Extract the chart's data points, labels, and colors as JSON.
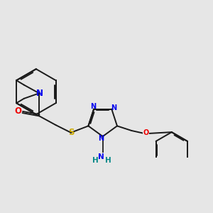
{
  "background_color": "#e6e6e6",
  "figsize": [
    3.0,
    3.0
  ],
  "dpi": 100,
  "bond_color": "#1a1a1a",
  "bond_width": 1.4,
  "atom_colors": {
    "N": "#0000ee",
    "O": "#ee0000",
    "S": "#ccaa00",
    "NH": "#008888"
  },
  "font_size": 8.5,
  "font_size_small": 7.0
}
